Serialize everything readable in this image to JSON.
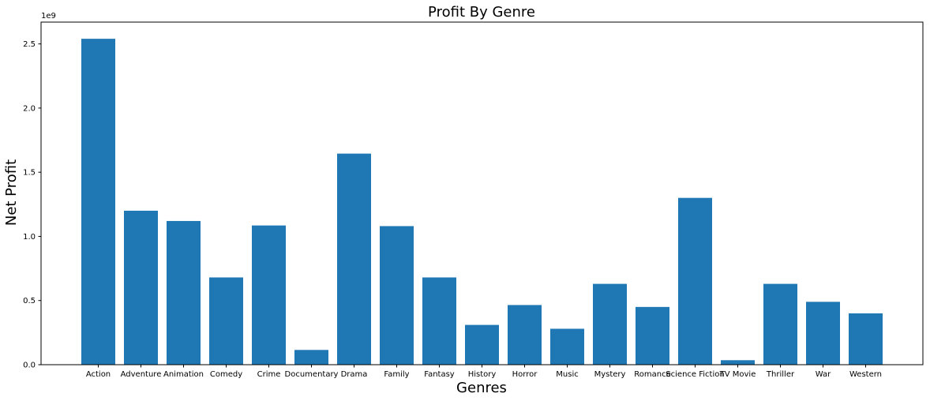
{
  "chart_data": {
    "type": "bar",
    "title": "Profit By Genre",
    "xlabel": "Genres",
    "ylabel": "Net Profit",
    "y_offset_label": "1e9",
    "categories": [
      "Action",
      "Adventure",
      "Animation",
      "Comedy",
      "Crime",
      "Documentary",
      "Drama",
      "Family",
      "Fantasy",
      "History",
      "Horror",
      "Music",
      "Mystery",
      "Romance",
      "Science Fiction",
      "TV Movie",
      "Thriller",
      "War",
      "Western"
    ],
    "values": [
      2.54,
      1.2,
      1.12,
      0.68,
      1.085,
      0.115,
      1.645,
      1.08,
      0.68,
      0.31,
      0.465,
      0.28,
      0.63,
      0.45,
      1.3,
      0.035,
      0.63,
      0.49,
      0.4
    ],
    "y_unit_multiplier": 1000000000,
    "ylim": [
      0,
      2.67
    ],
    "yticks": [
      "0.0",
      "0.5",
      "1.0",
      "1.5",
      "2.0",
      "2.5"
    ],
    "ytick_values": [
      0,
      0.5,
      1.0,
      1.5,
      2.0,
      2.5
    ],
    "grid": false,
    "bar_color": "#1f77b4"
  }
}
